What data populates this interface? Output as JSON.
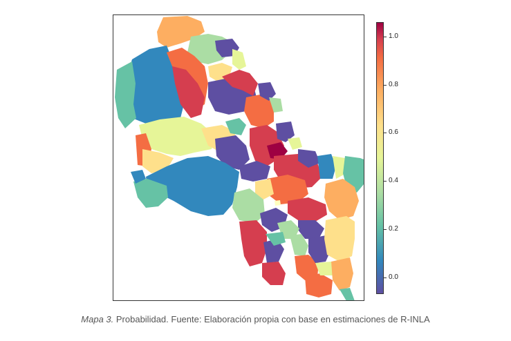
{
  "legend": {
    "ticks": [
      "1.0",
      "0.8",
      "0.6",
      "0.4",
      "0.2",
      "0.0"
    ],
    "values": [
      1.0,
      0.8,
      0.6,
      0.4,
      0.2,
      0.0
    ],
    "min": -0.07,
    "max": 1.06,
    "palette": [
      "#5e4fa2",
      "#3288bd",
      "#66c2a5",
      "#abdda4",
      "#e6f598",
      "#fee08b",
      "#fdae61",
      "#f46d43",
      "#d53e4f",
      "#9e0142"
    ]
  },
  "caption": {
    "label": "Mapa 3.",
    "text": " Probabilidad. Fuente: Elaboración propia con base en estimaciones de R-INLA"
  }
}
